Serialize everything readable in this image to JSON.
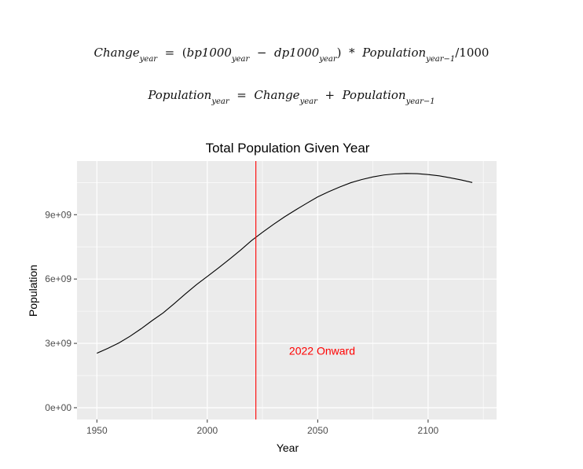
{
  "formulas": {
    "eq1": {
      "lhs": "Change",
      "lhs_sub": "year",
      "eq": "=",
      "open": "(",
      "t1": "bp1000",
      "t1_sub": "year",
      "minus": "−",
      "t2": "dp1000",
      "t2_sub": "year",
      "close": ")",
      "times": "*",
      "t3": "Population",
      "t3_sub": "year−1",
      "tail": "/1000"
    },
    "eq2": {
      "lhs": "Population",
      "lhs_sub": "year",
      "eq": "=",
      "t1": "Change",
      "t1_sub": "year",
      "plus": "+",
      "t2": "Population",
      "t2_sub": "year−1"
    }
  },
  "chart_data": {
    "type": "line",
    "title": "Total Population Given Year",
    "xlabel": "Year",
    "ylabel": "Population",
    "xlim": [
      1941,
      2131
    ],
    "ylim": [
      -550000000,
      11500000000
    ],
    "x_ticks": [
      1950,
      2000,
      2050,
      2100
    ],
    "x_tick_labels": [
      "1950",
      "2000",
      "2050",
      "2100"
    ],
    "y_ticks": [
      0,
      3000000000,
      6000000000,
      9000000000
    ],
    "y_tick_labels": [
      "0e+00",
      "3e+09",
      "6e+09",
      "9e+09"
    ],
    "grid": true,
    "colors": {
      "panel": "#ebebeb",
      "grid": "#ffffff",
      "line": "#000000",
      "vline": "#ff0000",
      "annotation": "#ff0000"
    },
    "vline": {
      "x": 2022
    },
    "annotation": {
      "text": "2022 Onward",
      "x": 2052,
      "y": 2650000000
    },
    "series": [
      {
        "x": [
          1950,
          1955,
          1960,
          1965,
          1970,
          1975,
          1980,
          1985,
          1990,
          1995,
          2000,
          2005,
          2010,
          2015,
          2020,
          2025,
          2030,
          2035,
          2040,
          2045,
          2050,
          2055,
          2060,
          2065,
          2070,
          2075,
          2080,
          2085,
          2090,
          2095,
          2100,
          2105,
          2110,
          2115,
          2120
        ],
        "y": [
          2540000000,
          2770000000,
          3020000000,
          3330000000,
          3680000000,
          4060000000,
          4420000000,
          4850000000,
          5300000000,
          5730000000,
          6120000000,
          6510000000,
          6920000000,
          7340000000,
          7790000000,
          8180000000,
          8550000000,
          8900000000,
          9220000000,
          9530000000,
          9830000000,
          10070000000,
          10290000000,
          10490000000,
          10640000000,
          10760000000,
          10850000000,
          10900000000,
          10920000000,
          10910000000,
          10870000000,
          10810000000,
          10720000000,
          10620000000,
          10500000000
        ]
      }
    ]
  }
}
